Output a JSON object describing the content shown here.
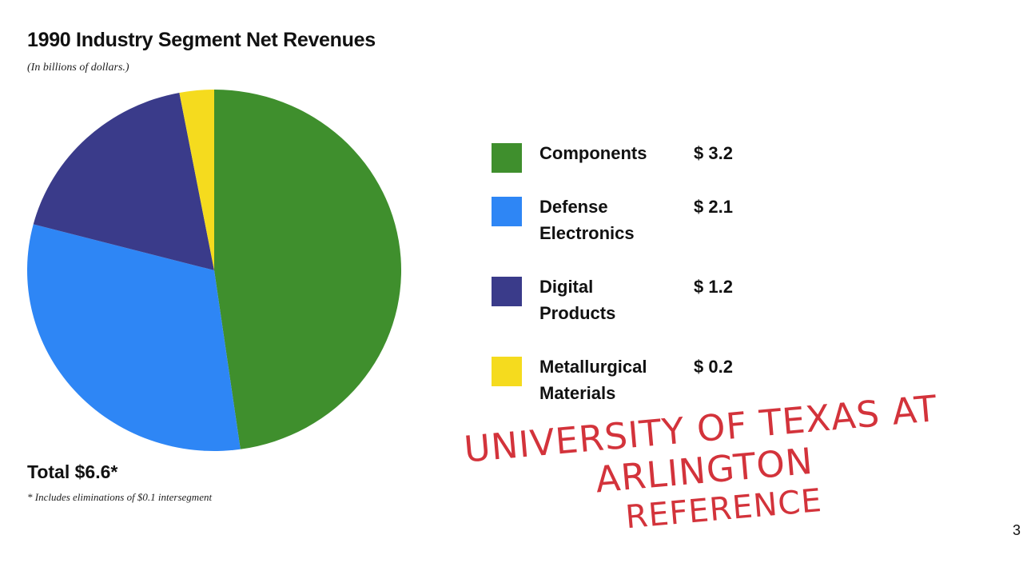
{
  "chart_data": {
    "type": "pie",
    "title": "1990 Industry Segment Net Revenues",
    "subtitle": "(In billions of dollars.)",
    "categories": [
      "Components",
      "Defense Electronics",
      "Digital Products",
      "Metallurgical Materials"
    ],
    "labels": [
      [
        "Components"
      ],
      [
        "Defense",
        "Electronics"
      ],
      [
        "Digital",
        "Products"
      ],
      [
        "Metallurgical",
        "Materials"
      ]
    ],
    "values": [
      3.2,
      2.1,
      1.2,
      0.2
    ],
    "value_labels": [
      "$ 3.2",
      "$ 2.1",
      "$ 1.2",
      "$ 0.2"
    ],
    "colors": [
      "#3f8f2d",
      "#2e86f5",
      "#3a3b8a",
      "#f5db1e"
    ],
    "legend_position": "right",
    "total_label": "Total $6.6*",
    "footnote": "* Includes eliminations of $0.1 intersegment"
  },
  "stamp": {
    "line1": "UNIVERSITY OF TEXAS AT ARLINGTON",
    "line2": "REFERENCE",
    "color": "#d3333b"
  },
  "page_number": "3"
}
